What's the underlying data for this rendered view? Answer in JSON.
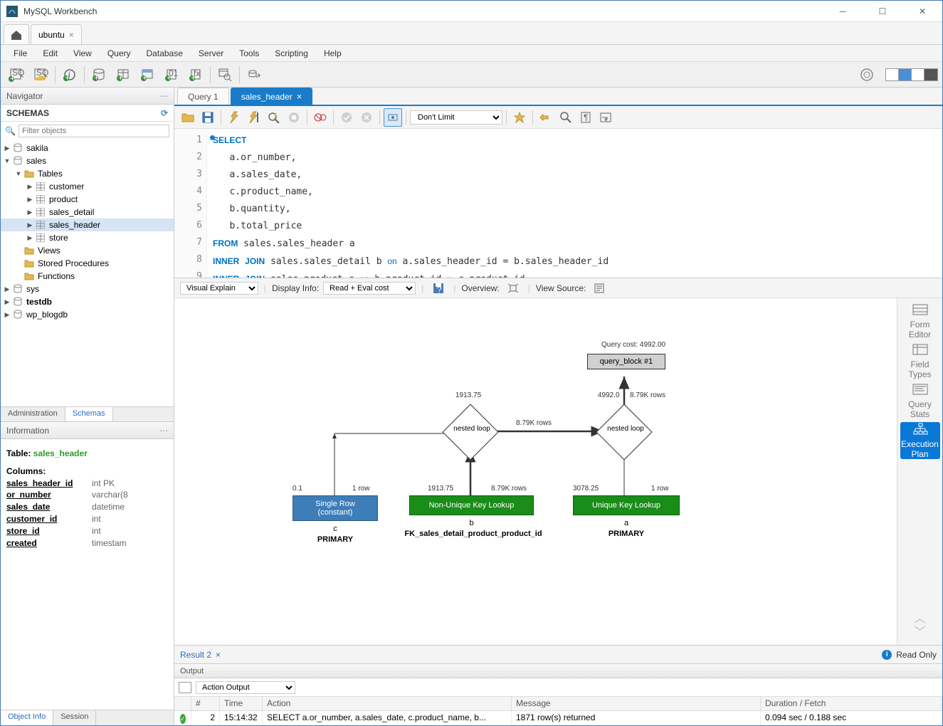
{
  "window": {
    "title": "MySQL Workbench"
  },
  "conn_tab": "ubuntu",
  "menu": [
    "File",
    "Edit",
    "View",
    "Query",
    "Database",
    "Server",
    "Tools",
    "Scripting",
    "Help"
  ],
  "navigator": {
    "header": "Navigator",
    "schemas_label": "SCHEMAS",
    "filter_placeholder": "Filter objects",
    "tabs": [
      "Administration",
      "Schemas"
    ],
    "active_tab": 1
  },
  "tree": {
    "schemas": [
      {
        "name": "sakila",
        "expanded": false
      },
      {
        "name": "sales",
        "expanded": true,
        "children": {
          "tables_label": "Tables",
          "tables": [
            "customer",
            "product",
            "sales_detail",
            "sales_header",
            "store"
          ],
          "selected": "sales_header",
          "views": "Views",
          "procs": "Stored Procedures",
          "funcs": "Functions"
        }
      },
      {
        "name": "sys",
        "expanded": false
      },
      {
        "name": "testdb",
        "expanded": false,
        "bold": true
      },
      {
        "name": "wp_blogdb",
        "expanded": false
      }
    ]
  },
  "info": {
    "header": "Information",
    "table_prefix": "Table: ",
    "table_name": "sales_header",
    "columns_header": "Columns:",
    "columns": [
      {
        "name": "sales_header_id",
        "type": "int PK"
      },
      {
        "name": "or_number",
        "type": "varchar(8"
      },
      {
        "name": "sales_date",
        "type": "datetime"
      },
      {
        "name": "customer_id",
        "type": "int"
      },
      {
        "name": "store_id",
        "type": "int"
      },
      {
        "name": "created",
        "type": "timestam"
      }
    ],
    "bottom_tabs": [
      "Object Info",
      "Session"
    ]
  },
  "query_tabs": [
    {
      "label": "Query 1",
      "active": false
    },
    {
      "label": "sales_header",
      "active": true
    }
  ],
  "limit_select": "Don't Limit",
  "sql": {
    "lines": [
      {
        "n": 1,
        "html": "<span class='kw'>SELECT</span>"
      },
      {
        "n": 2,
        "html": "   a.or_number,"
      },
      {
        "n": 3,
        "html": "   a.sales_date,"
      },
      {
        "n": 4,
        "html": "   c.product_name,"
      },
      {
        "n": 5,
        "html": "   b.quantity,"
      },
      {
        "n": 6,
        "html": "   b.total_price"
      },
      {
        "n": 7,
        "html": "<span class='kw'>FROM</span> sales.sales_header a"
      },
      {
        "n": 8,
        "html": "<span class='kw'>INNER</span> <span class='kw'>JOIN</span> sales.sales_detail b <span class='op'>on</span> a.sales_header_id = b.sales_header_id"
      },
      {
        "n": 9,
        "html": "<span class='kw'>INNER</span> <span class='kw'>JOIN</span> sales product c <span class='op'>on</span> b product_id = c product_id"
      }
    ]
  },
  "explain_bar": {
    "mode": "Visual Explain",
    "display_label": "Display Info:",
    "display_value": "Read + Eval cost",
    "overview": "Overview:",
    "view_source": "View Source:"
  },
  "side_tools": [
    {
      "label": "Form Editor",
      "active": false
    },
    {
      "label": "Field Types",
      "active": false
    },
    {
      "label": "Query Stats",
      "active": false
    },
    {
      "label": "Execution Plan",
      "active": true
    }
  ],
  "explain": {
    "query_cost_label": "Query cost: 4992.00",
    "query_block": "query_block #1",
    "nested_loop": "nested loop",
    "boxes": {
      "single_row": {
        "label": "Single Row\n(constant)",
        "cost": "0.1",
        "rows": "1 row",
        "alias": "c",
        "idx": "PRIMARY",
        "color": "#3d7db8"
      },
      "nonuniq": {
        "label": "Non-Unique Key Lookup",
        "cost": "1913.75",
        "rows": "8.79K rows",
        "alias": "b",
        "idx": "FK_sales_detail_product_product_id",
        "color": "#1a8c1a"
      },
      "uniq": {
        "label": "Unique Key Lookup",
        "cost": "3078.25",
        "rows": "1 row",
        "alias": "a",
        "idx": "PRIMARY",
        "color": "#1a8c1a"
      }
    },
    "edge_labels": {
      "mid": "8.79K rows",
      "top_right": "8.79K rows",
      "nl1_cost": "1913.75",
      "nl2_cost": "4992.0"
    },
    "colors": {
      "grey": "#d0d0d0",
      "blue": "#3d7db8",
      "green": "#1a8c1a",
      "bg": "#ffffff"
    }
  },
  "result_tab": "Result 2",
  "readonly_label": "Read Only",
  "output": {
    "header": "Output",
    "select": "Action Output",
    "columns": [
      "",
      "#",
      "Time",
      "Action",
      "Message",
      "Duration / Fetch"
    ],
    "row": {
      "num": "2",
      "time": "15:14:32",
      "action": "SELECT   a.or_number,  a.sales_date,  c.product_name,  b...",
      "message": "1871 row(s) returned",
      "duration": "0.094 sec / 0.188 sec"
    }
  }
}
